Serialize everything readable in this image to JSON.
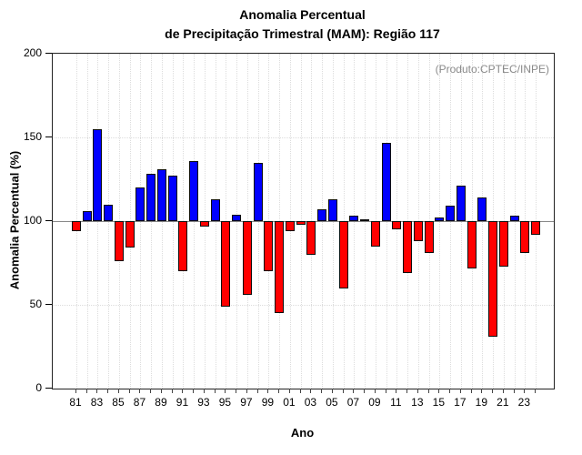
{
  "chart_data": {
    "type": "bar",
    "title": "Anomalia Percentual",
    "subtitle": "de Precipitação Trimestral (MAM): Região 117",
    "annotation": "(Produto:CPTEC/INPE)",
    "xlabel": "Ano",
    "ylabel": "Anomalia Percentual (%)",
    "ylim": [
      0,
      200
    ],
    "yticks": [
      0,
      50,
      100,
      150,
      200
    ],
    "baseline_value": 100,
    "grid": "dotted vertical line per year; dotted horizontal at 50/100/150",
    "legend": null,
    "colors": {
      "above_baseline": "#0000ff",
      "below_baseline": "#ff0000",
      "bar_outline": "#0d0d0d",
      "baseline_line": "#888888",
      "gridline": "#dcdcdc",
      "annotation_text": "#8a8a8a"
    },
    "x_tick_labels": [
      "81",
      "83",
      "85",
      "87",
      "89",
      "91",
      "93",
      "95",
      "97",
      "99",
      "01",
      "03",
      "05",
      "07",
      "09",
      "11",
      "13",
      "15",
      "17",
      "19",
      "21",
      "23"
    ],
    "years": [
      1981,
      1982,
      1983,
      1984,
      1985,
      1986,
      1987,
      1988,
      1989,
      1990,
      1991,
      1992,
      1993,
      1994,
      1995,
      1996,
      1997,
      1998,
      1999,
      2000,
      2001,
      2002,
      2003,
      2004,
      2005,
      2006,
      2007,
      2008,
      2009,
      2010,
      2011,
      2012,
      2013,
      2014,
      2015,
      2016,
      2017,
      2018,
      2019,
      2020,
      2021,
      2022,
      2023,
      2024
    ],
    "values": [
      94,
      106,
      155,
      110,
      76,
      84,
      120,
      128,
      131,
      127,
      70,
      136,
      97,
      113,
      49,
      104,
      56,
      135,
      70,
      45,
      94,
      98,
      80,
      107,
      113,
      60,
      103,
      101,
      85,
      147,
      95,
      69,
      88,
      81,
      102,
      109,
      121,
      72,
      114,
      31,
      73,
      103,
      81,
      92
    ]
  }
}
